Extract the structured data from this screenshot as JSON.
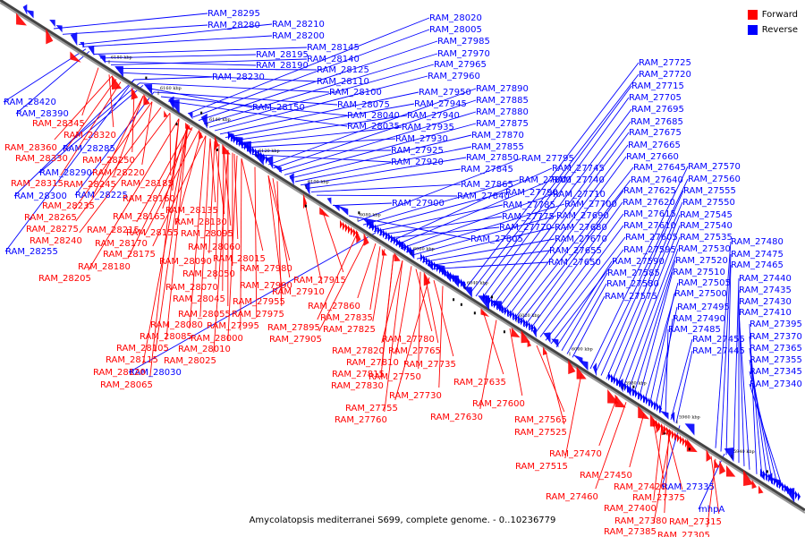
{
  "legend": {
    "forward_label": "Forward",
    "reverse_label": "Reverse"
  },
  "colors": {
    "forward": "#ff0000",
    "reverse": "#0000ff",
    "axis": "#555555"
  },
  "caption": "Amycolatopsis mediterranei S699, complete genome. - 0..10236779",
  "ticks": [
    "6180 kbp",
    "6160 kbp",
    "6140 kbp",
    "6120 kbp",
    "6100 kbp",
    "6080 kbp",
    "6060 kbp",
    "6040 kbp",
    "6020 kbp",
    "6000 kbp",
    "5980 kbp",
    "5960 kbp",
    "5940 kbp"
  ],
  "reverse_labels": [
    "RAM_28295",
    "RAM_28280",
    "RAM_28210",
    "RAM_28200",
    "RAM_28145",
    "RAM_28195",
    "RAM_28190",
    "RAM_28140",
    "RAM_28125",
    "RAM_28110",
    "RAM_28230",
    "RAM_28100",
    "RAM_28150",
    "RAM_28075",
    "RAM_28040",
    "RAM_28035",
    "RAM_28020",
    "RAM_28005",
    "RAM_27985",
    "RAM_27970",
    "RAM_27965",
    "RAM_27960",
    "RAM_27950",
    "RAM_27945",
    "RAM_27940",
    "RAM_27935",
    "RAM_27930",
    "RAM_27925",
    "RAM_27920",
    "RAM_27890",
    "RAM_27885",
    "RAM_27880",
    "RAM_27875",
    "RAM_27870",
    "RAM_27855",
    "RAM_27850",
    "RAM_27845",
    "RAM_27865",
    "RAM_27840",
    "RAM_27900",
    "RAM_27805",
    "RAM_27795",
    "RAM_27800",
    "RAM_27790",
    "RAM_27785",
    "RAM_27775",
    "RAM_27770",
    "RAM_27745",
    "RAM_27740",
    "RAM_27710",
    "RAM_27700",
    "RAM_27690",
    "RAM_27680",
    "RAM_27670",
    "RAM_27655",
    "RAM_27650",
    "RAM_27725",
    "RAM_27720",
    "RAM_27715",
    "RAM_27705",
    "RAM_27695",
    "RAM_27685",
    "RAM_27675",
    "RAM_27665",
    "RAM_27660",
    "RAM_27645",
    "RAM_27640",
    "RAM_27625",
    "RAM_27620",
    "RAM_27615",
    "RAM_27610",
    "RAM_27605",
    "RAM_27595",
    "RAM_27590",
    "RAM_27585",
    "RAM_27580",
    "RAM_27575",
    "RAM_27570",
    "RAM_27560",
    "RAM_27555",
    "RAM_27550",
    "RAM_27545",
    "RAM_27540",
    "RAM_27535",
    "RAM_27530",
    "RAM_27520",
    "RAM_27510",
    "RAM_27505",
    "RAM_27500",
    "RAM_27495",
    "RAM_27490",
    "RAM_27485",
    "RAM_27455",
    "RAM_27445",
    "RAM_27480",
    "RAM_27475",
    "RAM_27465",
    "RAM_27440",
    "RAM_27435",
    "RAM_27430",
    "RAM_27410",
    "RAM_27395",
    "RAM_27370",
    "RAM_27365",
    "RAM_27355",
    "RAM_27345",
    "RAM_27340",
    "RAM_27335",
    "RAM_28420",
    "RAM_28390",
    "RAM_28285",
    "RAM_28290",
    "RAM_28225",
    "RAM_28300",
    "RAM_28255",
    "RAM_28030",
    "mhpA"
  ],
  "forward_labels": [
    "RAM_28345",
    "RAM_28320",
    "RAM_28360",
    "RAM_28330",
    "RAM_28250",
    "RAM_28315",
    "RAM_28245",
    "RAM_28220",
    "RAM_28185",
    "RAM_28235",
    "RAM_28160",
    "RAM_28265",
    "RAM_28165",
    "RAM_28135",
    "RAM_28275",
    "RAM_28215",
    "RAM_28130",
    "RAM_28155",
    "RAM_28240",
    "RAM_28170",
    "RAM_28095",
    "RAM_28175",
    "RAM_28060",
    "RAM_28180",
    "RAM_28015",
    "RAM_28205",
    "RAM_28090",
    "RAM_27980",
    "RAM_28050",
    "RAM_27915",
    "RAM_28070",
    "RAM_27990",
    "RAM_27910",
    "RAM_28045",
    "RAM_27955",
    "RAM_28055",
    "RAM_27975",
    "RAM_28080",
    "RAM_27995",
    "RAM_28085",
    "RAM_28000",
    "RAM_28105",
    "RAM_28010",
    "RAM_28025",
    "RAM_28115",
    "RAM_28120",
    "RAM_28065",
    "RAM_27860",
    "RAM_27835",
    "RAM_27895",
    "RAM_27825",
    "RAM_27905",
    "RAM_27780",
    "RAM_27820",
    "RAM_27765",
    "RAM_27810",
    "RAM_27735",
    "RAM_27815",
    "RAM_27750",
    "RAM_27830",
    "RAM_27635",
    "RAM_27730",
    "RAM_27755",
    "RAM_27600",
    "RAM_27760",
    "RAM_27630",
    "RAM_27565",
    "RAM_27525",
    "RAM_27470",
    "RAM_27515",
    "RAM_27450",
    "RAM_27420",
    "RAM_27460",
    "RAM_27400",
    "RAM_27375",
    "RAM_27380",
    "RAM_27385",
    "RAM_27315",
    "RAM_27305"
  ]
}
